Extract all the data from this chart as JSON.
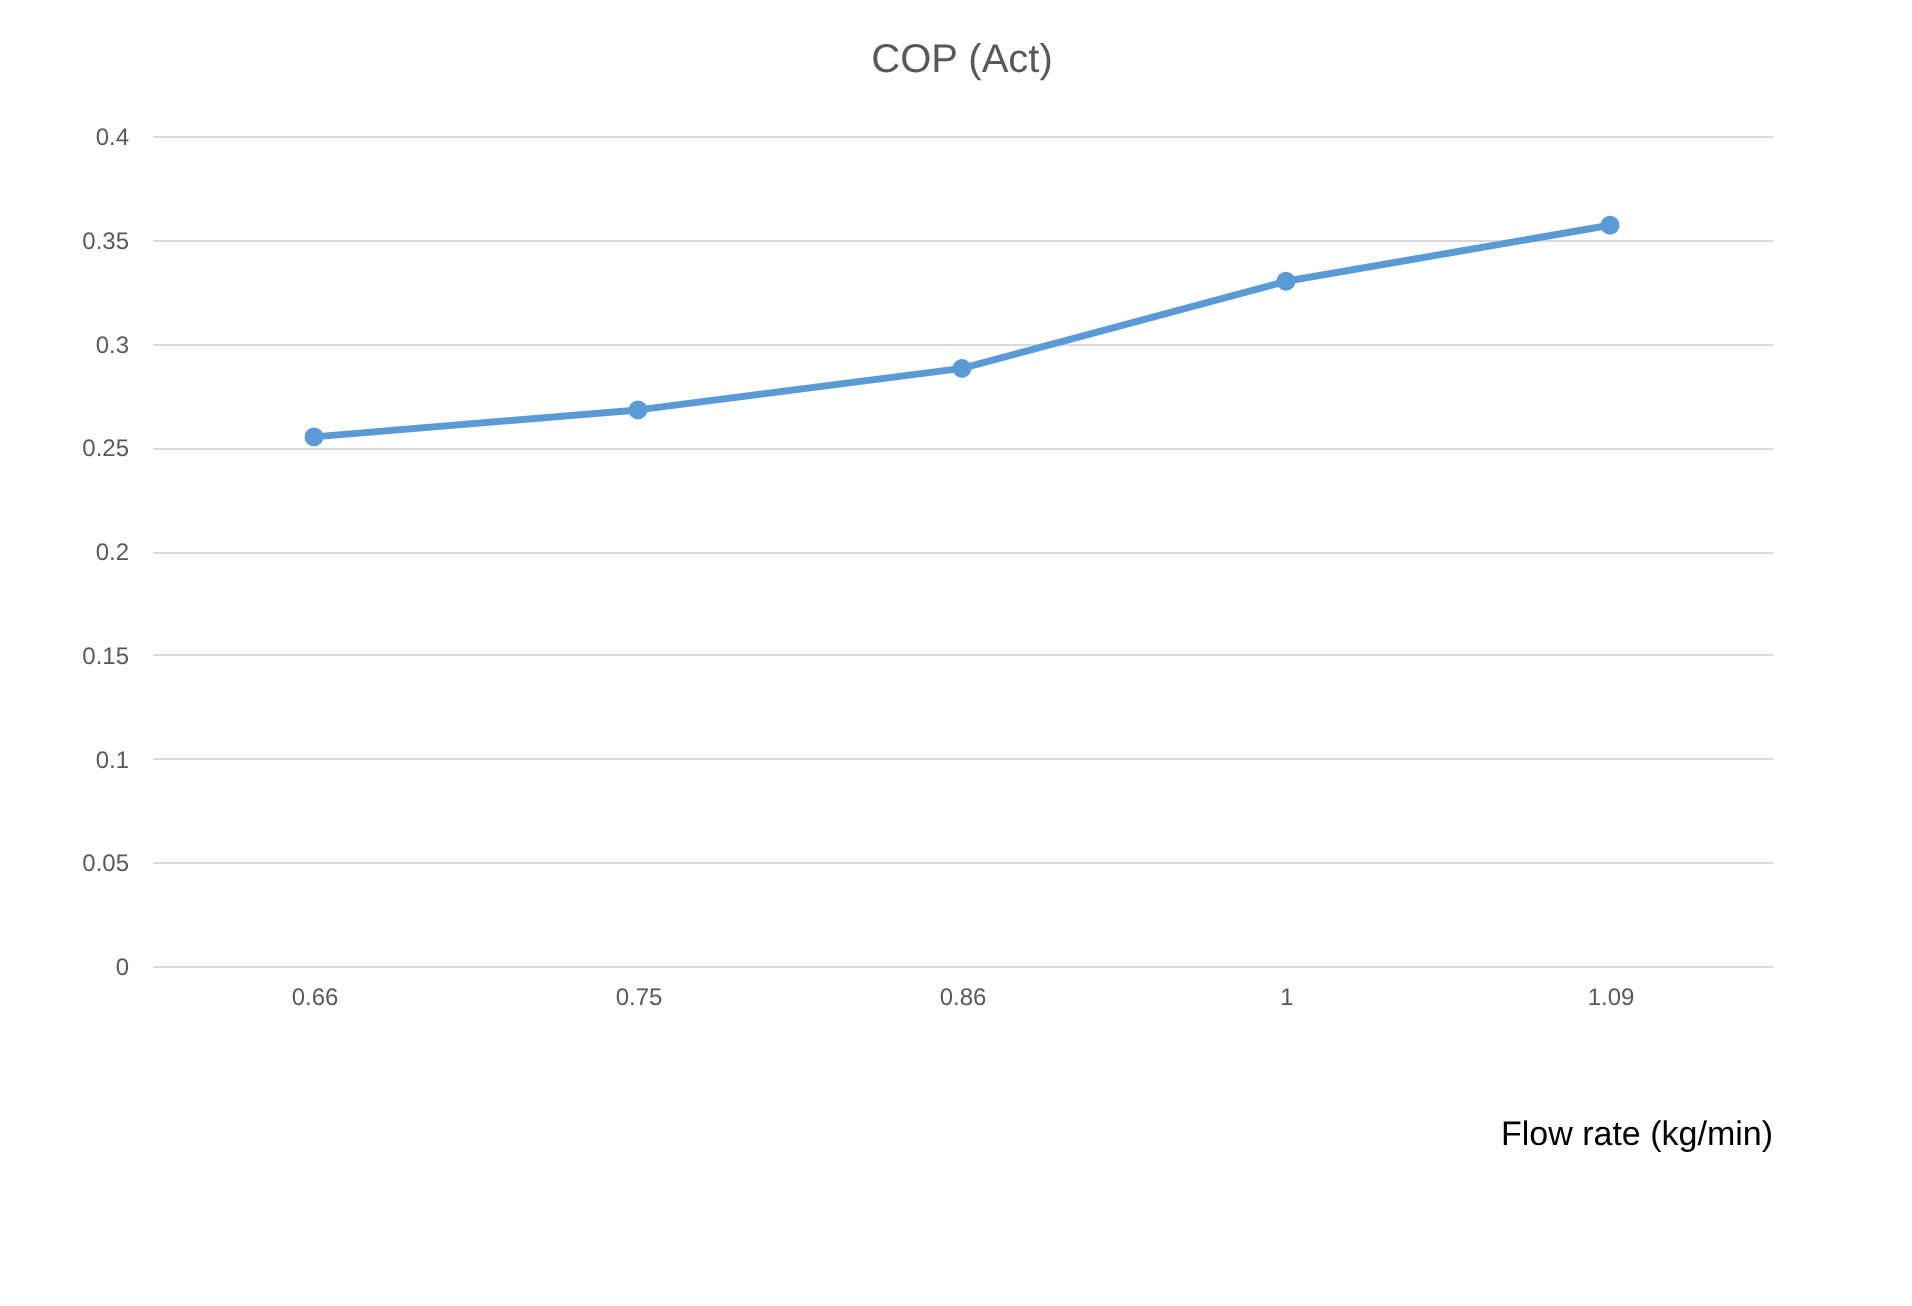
{
  "chart_data": {
    "type": "line",
    "title": "COP (Act)",
    "xlabel": "Flow rate (kg/min)",
    "categories": [
      "0.66",
      "0.75",
      "0.86",
      "1",
      "1.09"
    ],
    "series": [
      {
        "color": "#5b9bd5",
        "values": [
          0.255,
          0.268,
          0.288,
          0.33,
          0.357
        ]
      }
    ],
    "ylim": [
      0,
      0.4
    ],
    "yticks": [
      0,
      0.05,
      0.1,
      0.15,
      0.2,
      0.25,
      0.3,
      0.35,
      0.4
    ],
    "grid": "y",
    "marker": "circle",
    "line_style": "solid",
    "legend": false
  }
}
